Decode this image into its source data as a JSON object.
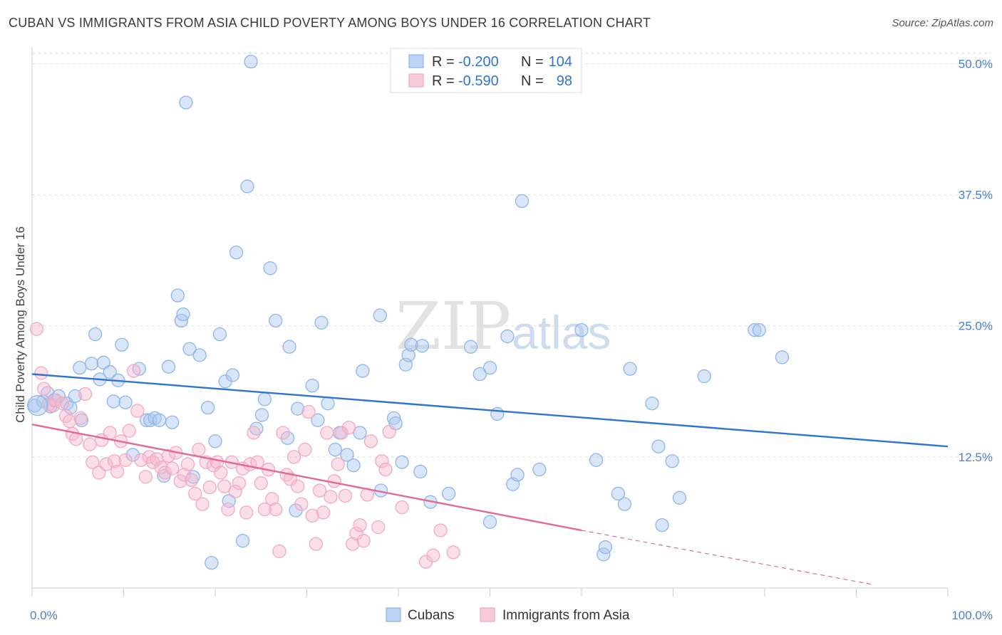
{
  "title": "CUBAN VS IMMIGRANTS FROM ASIA CHILD POVERTY AMONG BOYS UNDER 16 CORRELATION CHART",
  "source": "Source: ZipAtlas.com",
  "watermark": {
    "zip": "ZIP",
    "atlas": "atlas"
  },
  "chart_data": {
    "type": "scatter",
    "title": "CUBAN VS IMMIGRANTS FROM ASIA CHILD POVERTY AMONG BOYS UNDER 16 CORRELATION CHART",
    "xlabel": "",
    "ylabel": "Child Poverty Among Boys Under 16",
    "xlim": [
      0,
      100
    ],
    "ylim": [
      0,
      52
    ],
    "x_tick_labels": {
      "min": "0.0%",
      "max": "100.0%"
    },
    "y_ticks": [
      {
        "value": 12.5,
        "label": "12.5%"
      },
      {
        "value": 25.0,
        "label": "25.0%"
      },
      {
        "value": 37.5,
        "label": "37.5%"
      },
      {
        "value": 50.0,
        "label": "50.0%"
      }
    ],
    "grid": true,
    "legend_placement": "top-center",
    "stats": [
      {
        "r_label": "R =",
        "r": "-0.200",
        "n_label": "N =",
        "n": "104"
      },
      {
        "r_label": "R =",
        "r": "-0.590",
        "n_label": "N =",
        "n": "98"
      }
    ],
    "series": [
      {
        "name": "Cubans",
        "color": "#8fb5ea",
        "line_color": "#2f74d0",
        "trend": {
          "x": [
            0,
            100
          ],
          "y": [
            20.4,
            13.5
          ]
        },
        "points": [
          [
            0.3,
            17.4
          ],
          [
            1.2,
            17.8
          ],
          [
            1.7,
            18.6
          ],
          [
            2.0,
            17.3
          ],
          [
            2.4,
            17.9
          ],
          [
            2.9,
            18.3
          ],
          [
            3.8,
            17.6
          ],
          [
            4.2,
            17.2
          ],
          [
            4.7,
            18.3
          ],
          [
            5.4,
            16.0
          ],
          [
            5.2,
            21.0
          ],
          [
            6.5,
            21.4
          ],
          [
            6.9,
            24.2
          ],
          [
            7.4,
            19.9
          ],
          [
            7.8,
            21.5
          ],
          [
            8.5,
            20.6
          ],
          [
            8.9,
            17.8
          ],
          [
            9.4,
            19.8
          ],
          [
            9.8,
            23.2
          ],
          [
            10.2,
            17.7
          ],
          [
            11.0,
            12.7
          ],
          [
            11.7,
            20.9
          ],
          [
            12.5,
            16.0
          ],
          [
            12.9,
            16.0
          ],
          [
            13.4,
            16.2
          ],
          [
            13.9,
            16.0
          ],
          [
            14.4,
            10.7
          ],
          [
            14.9,
            21.1
          ],
          [
            15.3,
            15.8
          ],
          [
            15.9,
            27.9
          ],
          [
            16.3,
            25.5
          ],
          [
            16.5,
            26.1
          ],
          [
            16.8,
            46.3
          ],
          [
            17.2,
            22.8
          ],
          [
            17.6,
            10.6
          ],
          [
            18.3,
            22.2
          ],
          [
            19.2,
            17.2
          ],
          [
            19.6,
            2.4
          ],
          [
            20.0,
            14.0
          ],
          [
            20.5,
            24.2
          ],
          [
            21.1,
            19.7
          ],
          [
            21.5,
            8.3
          ],
          [
            21.9,
            20.3
          ],
          [
            22.3,
            32.0
          ],
          [
            23.0,
            4.5
          ],
          [
            23.5,
            38.3
          ],
          [
            23.9,
            50.2
          ],
          [
            24.5,
            15.2
          ],
          [
            25.1,
            16.5
          ],
          [
            25.4,
            18.0
          ],
          [
            26.0,
            30.5
          ],
          [
            26.6,
            25.5
          ],
          [
            27.9,
            14.3
          ],
          [
            28.1,
            23.0
          ],
          [
            28.8,
            7.4
          ],
          [
            29.0,
            17.1
          ],
          [
            30.6,
            19.3
          ],
          [
            31.2,
            16.0
          ],
          [
            31.6,
            25.3
          ],
          [
            32.3,
            17.6
          ],
          [
            33.1,
            13.2
          ],
          [
            33.6,
            14.8
          ],
          [
            34.4,
            12.7
          ],
          [
            35.1,
            11.7
          ],
          [
            35.8,
            14.8
          ],
          [
            36.1,
            20.7
          ],
          [
            38.1,
            9.3
          ],
          [
            39.5,
            16.2
          ],
          [
            39.7,
            15.7
          ],
          [
            40.4,
            12.0
          ],
          [
            40.8,
            21.3
          ],
          [
            41.1,
            22.2
          ],
          [
            41.4,
            23.2
          ],
          [
            42.4,
            11.1
          ],
          [
            42.6,
            23.1
          ],
          [
            43.5,
            8.2
          ],
          [
            47.9,
            23.0
          ],
          [
            48.9,
            20.4
          ],
          [
            50.0,
            6.3
          ],
          [
            50.8,
            16.6
          ],
          [
            51.9,
            24.0
          ],
          [
            52.5,
            9.9
          ],
          [
            53.0,
            10.8
          ],
          [
            53.5,
            36.9
          ],
          [
            55.4,
            11.3
          ],
          [
            60.0,
            24.6
          ],
          [
            61.6,
            12.2
          ],
          [
            62.4,
            3.2
          ],
          [
            62.6,
            3.9
          ],
          [
            64.0,
            9.0
          ],
          [
            64.7,
            8.0
          ],
          [
            65.3,
            20.9
          ],
          [
            67.7,
            17.6
          ],
          [
            68.4,
            13.5
          ],
          [
            68.8,
            6.0
          ],
          [
            69.9,
            12.1
          ],
          [
            70.7,
            8.6
          ],
          [
            73.4,
            20.2
          ],
          [
            78.9,
            24.6
          ],
          [
            79.4,
            24.6
          ],
          [
            81.9,
            22.0
          ],
          [
            50.0,
            21.0
          ],
          [
            45.5,
            9.0
          ],
          [
            38.0,
            26.0
          ]
        ]
      },
      {
        "name": "Immigrants from Asia",
        "color": "#f2a9c2",
        "line_color": "#e06a98",
        "trend": {
          "x": [
            0,
            60
          ],
          "y": [
            15.6,
            5.5
          ]
        },
        "trend_dashed": {
          "x": [
            60,
            92
          ],
          "y": [
            5.5,
            0.3
          ]
        },
        "points": [
          [
            0.5,
            24.7
          ],
          [
            1.0,
            20.5
          ],
          [
            1.3,
            19.0
          ],
          [
            1.8,
            17.5
          ],
          [
            2.3,
            17.4
          ],
          [
            2.6,
            17.9
          ],
          [
            3.3,
            17.6
          ],
          [
            3.7,
            16.4
          ],
          [
            4.1,
            15.9
          ],
          [
            4.4,
            14.7
          ],
          [
            4.8,
            14.2
          ],
          [
            5.3,
            16.2
          ],
          [
            5.8,
            18.5
          ],
          [
            6.3,
            13.7
          ],
          [
            6.6,
            12.0
          ],
          [
            7.3,
            11.0
          ],
          [
            7.6,
            14.1
          ],
          [
            8.1,
            11.8
          ],
          [
            8.5,
            14.8
          ],
          [
            9.0,
            12.1
          ],
          [
            9.3,
            11.1
          ],
          [
            9.7,
            14.0
          ],
          [
            10.2,
            12.2
          ],
          [
            10.6,
            15.0
          ],
          [
            11.1,
            20.7
          ],
          [
            11.5,
            16.9
          ],
          [
            11.9,
            12.2
          ],
          [
            12.4,
            10.6
          ],
          [
            12.8,
            12.5
          ],
          [
            13.2,
            12.0
          ],
          [
            13.6,
            12.3
          ],
          [
            14.1,
            11.5
          ],
          [
            14.5,
            11.0
          ],
          [
            14.9,
            12.6
          ],
          [
            15.3,
            11.4
          ],
          [
            15.7,
            12.9
          ],
          [
            16.2,
            10.2
          ],
          [
            16.6,
            10.8
          ],
          [
            17.0,
            11.8
          ],
          [
            17.4,
            10.3
          ],
          [
            17.8,
            9.0
          ],
          [
            18.2,
            13.2
          ],
          [
            18.6,
            8.0
          ],
          [
            19.0,
            12.0
          ],
          [
            19.4,
            9.6
          ],
          [
            19.8,
            11.7
          ],
          [
            20.2,
            12.0
          ],
          [
            20.6,
            11.0
          ],
          [
            21.0,
            9.7
          ],
          [
            21.4,
            7.5
          ],
          [
            21.8,
            12.0
          ],
          [
            22.2,
            9.2
          ],
          [
            22.6,
            10.0
          ],
          [
            23.0,
            11.4
          ],
          [
            23.4,
            7.2
          ],
          [
            23.8,
            11.8
          ],
          [
            24.2,
            14.8
          ],
          [
            24.6,
            12.0
          ],
          [
            25.0,
            10.0
          ],
          [
            25.4,
            7.5
          ],
          [
            25.8,
            11.3
          ],
          [
            26.2,
            8.5
          ],
          [
            26.6,
            7.5
          ],
          [
            27.0,
            3.5
          ],
          [
            27.4,
            14.8
          ],
          [
            27.8,
            10.8
          ],
          [
            28.2,
            10.4
          ],
          [
            28.6,
            12.5
          ],
          [
            29.0,
            9.7
          ],
          [
            29.4,
            8.0
          ],
          [
            29.8,
            13.2
          ],
          [
            30.2,
            16.8
          ],
          [
            30.6,
            6.9
          ],
          [
            31.0,
            4.2
          ],
          [
            31.4,
            9.3
          ],
          [
            31.8,
            7.2
          ],
          [
            32.2,
            14.8
          ],
          [
            32.6,
            8.7
          ],
          [
            33.0,
            10.2
          ],
          [
            33.4,
            11.8
          ],
          [
            33.8,
            14.8
          ],
          [
            34.2,
            8.8
          ],
          [
            34.6,
            15.3
          ],
          [
            35.0,
            4.2
          ],
          [
            35.4,
            5.2
          ],
          [
            35.8,
            6.0
          ],
          [
            36.2,
            4.5
          ],
          [
            36.6,
            8.9
          ],
          [
            37.0,
            14.0
          ],
          [
            37.8,
            5.8
          ],
          [
            38.2,
            12.1
          ],
          [
            38.6,
            11.3
          ],
          [
            39.0,
            14.9
          ],
          [
            40.4,
            7.7
          ],
          [
            43.0,
            2.5
          ],
          [
            43.8,
            3.1
          ],
          [
            44.6,
            5.5
          ],
          [
            46.0,
            3.4
          ]
        ]
      }
    ]
  },
  "legend": {
    "items": [
      {
        "label": "Cubans"
      },
      {
        "label": "Immigrants from Asia"
      }
    ]
  }
}
